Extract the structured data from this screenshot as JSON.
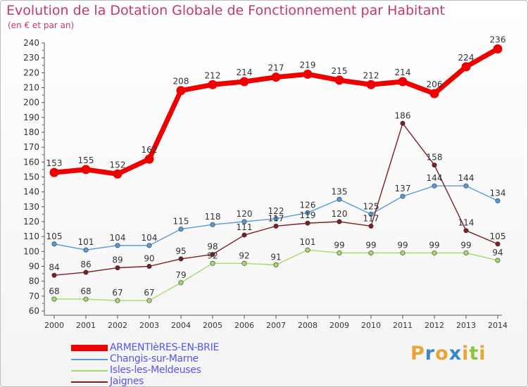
{
  "title": "Evolution de la Dotation Globale de Fonctionnement par Habitant",
  "subtitle": "(en € et par an)",
  "logo": {
    "letters": [
      {
        "char": "P",
        "color": "#e8a33a"
      },
      {
        "char": "r",
        "color": "#3a86c8"
      },
      {
        "char": "o",
        "color": "#e8a33a"
      },
      {
        "char": "x",
        "color": "#3a86c8"
      },
      {
        "char": "i",
        "color": "#e8a33a"
      },
      {
        "char": "t",
        "color": "#8cc63f"
      },
      {
        "char": "i",
        "color": "#e8a33a"
      }
    ]
  },
  "chart_data": {
    "type": "line",
    "x": [
      "2000",
      "2001",
      "2002",
      "2003",
      "2004",
      "2005",
      "2006",
      "2007",
      "2008",
      "2009",
      "2010",
      "2011",
      "2012",
      "2013",
      "2014"
    ],
    "ylim": [
      60,
      240
    ],
    "yticks": [
      60,
      70,
      80,
      90,
      100,
      110,
      120,
      130,
      140,
      150,
      160,
      170,
      180,
      190,
      200,
      210,
      220,
      230,
      240
    ],
    "grid": false,
    "legend_position": "bottom-left",
    "series": [
      {
        "name": "ARMENTIèRES-EN-BRIE",
        "color": "#ee0000",
        "label_color": "#5555ee",
        "width": "thick",
        "values": [
          153,
          155,
          152,
          162,
          208,
          212,
          214,
          217,
          219,
          215,
          212,
          214,
          206,
          224,
          236
        ],
        "labels": [
          "153",
          "155",
          "152",
          "162",
          "208",
          "212",
          "214",
          "217",
          "219",
          "215",
          "212",
          "214",
          "206",
          "224",
          "236"
        ]
      },
      {
        "name": "Changis-sur-Marne",
        "color": "#5b9bd5",
        "label_color": "#5555ee",
        "width": "thin",
        "values": [
          105,
          101,
          104,
          104,
          115,
          118,
          120,
          122,
          126,
          135,
          125,
          137,
          144,
          144,
          134
        ],
        "labels": [
          "105",
          "101",
          "104",
          "104",
          "115",
          "118",
          "120",
          "122",
          "126",
          "135",
          "125",
          "137",
          "144",
          "144",
          "134"
        ]
      },
      {
        "name": "Isles-les-Meldeuses",
        "color": "#a6d86e",
        "label_color": "#5555ee",
        "width": "thin",
        "values": [
          68,
          68,
          67,
          67,
          79,
          92,
          92,
          91,
          101,
          99,
          99,
          99,
          99,
          99,
          94
        ],
        "labels": [
          "68",
          "68",
          "67",
          "67",
          "79",
          "92",
          "92",
          "91",
          "101",
          "99",
          "99",
          "99",
          "99",
          "99",
          "94"
        ]
      },
      {
        "name": "Jaignes",
        "color": "#7a1f24",
        "label_color": "#5555ee",
        "width": "thin",
        "values": [
          84,
          86,
          89,
          90,
          95,
          98,
          111,
          117,
          119,
          120,
          117,
          186,
          158,
          114,
          105
        ],
        "labels": [
          "84",
          "86",
          "89",
          "90",
          "95",
          "98",
          "111",
          "117",
          "119",
          "120",
          "117",
          "186",
          "158",
          "114",
          "105"
        ]
      }
    ]
  }
}
